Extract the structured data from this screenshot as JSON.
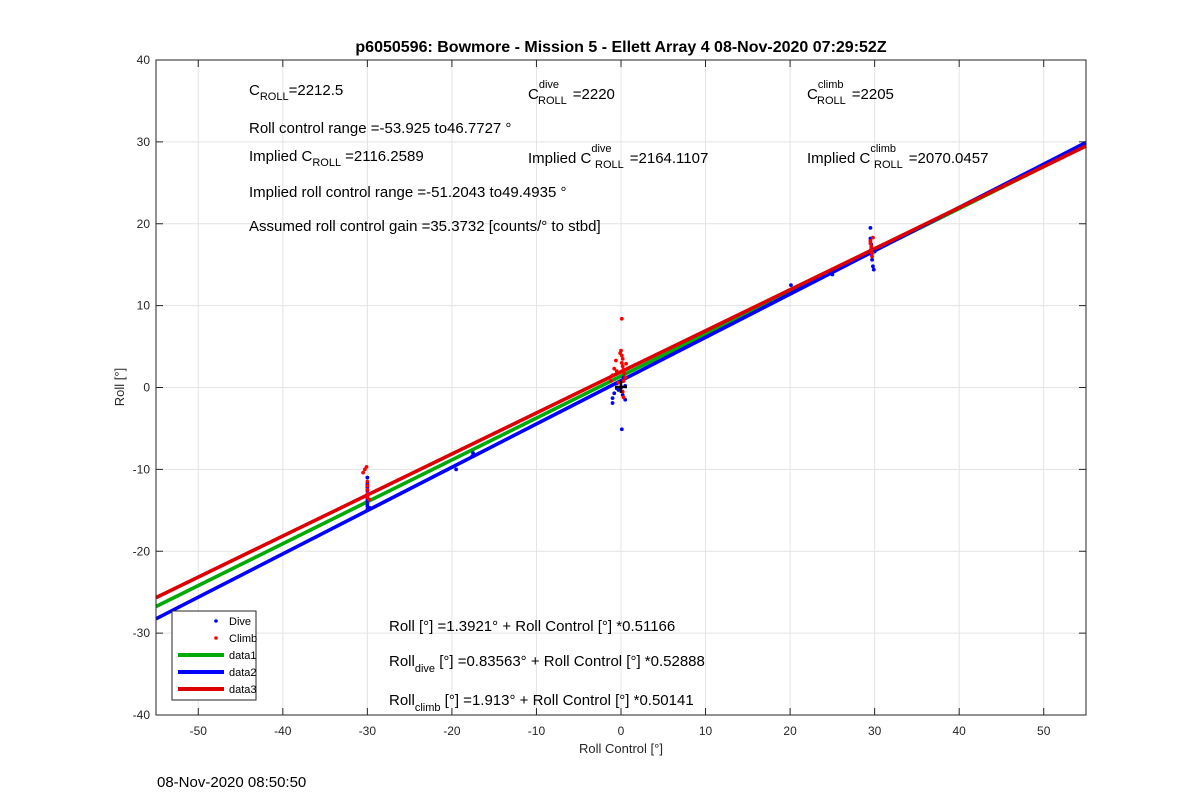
{
  "figure": {
    "timestamp": "08-Nov-2020 08:50:50"
  },
  "chart_data": {
    "type": "scatter",
    "title": "p6050596: Bowmore - Mission 5 - Ellett Array 4 08-Nov-2020 07:29:52Z",
    "xlabel": "Roll Control [°]",
    "ylabel": "Roll [°]",
    "xlim": [
      -55,
      55
    ],
    "ylim": [
      -40,
      40
    ],
    "xticks": [
      -50,
      -40,
      -30,
      -20,
      -10,
      0,
      10,
      20,
      30,
      40,
      50
    ],
    "yticks": [
      -40,
      -30,
      -20,
      -10,
      0,
      10,
      20,
      30,
      40
    ],
    "grid": true,
    "legend_position": "bottom-left",
    "legend": [
      {
        "label": "Dive",
        "kind": "marker",
        "color": "#0000ff"
      },
      {
        "label": "Climb",
        "kind": "marker",
        "color": "#ff0000"
      },
      {
        "label": "data1",
        "kind": "line",
        "color": "#00aa00"
      },
      {
        "label": "data2",
        "kind": "line",
        "color": "#0000ff"
      },
      {
        "label": "data3",
        "kind": "line",
        "color": "#dd0000"
      }
    ],
    "series": [
      {
        "name": "Dive",
        "type": "scatter",
        "color": "#0000ff",
        "points": [
          [
            -30,
            -14.9
          ],
          [
            -30,
            -14.5
          ],
          [
            -30,
            -14.2
          ],
          [
            -30,
            -13.8
          ],
          [
            -30,
            -13.5
          ],
          [
            -30,
            -13.0
          ],
          [
            -30,
            -12.6
          ],
          [
            -30,
            -12.2
          ],
          [
            -30,
            -11.8
          ],
          [
            -30,
            -11.0
          ],
          [
            -29.7,
            -14.7
          ],
          [
            -19.5,
            -10.0
          ],
          [
            -17.6,
            -8.4
          ],
          [
            -17.5,
            -8.0
          ],
          [
            -1,
            -1.9
          ],
          [
            -1,
            -1.3
          ],
          [
            -0.8,
            -0.7
          ],
          [
            -0.5,
            0.5
          ],
          [
            -0.3,
            -0.3
          ],
          [
            0,
            0
          ],
          [
            0.2,
            0.8
          ],
          [
            0.3,
            1.2
          ],
          [
            0.2,
            -0.9
          ],
          [
            0.5,
            -1.5
          ],
          [
            0.1,
            -5.1
          ],
          [
            0.5,
            0.2
          ],
          [
            -0.5,
            -0.1
          ],
          [
            20.1,
            12.5
          ],
          [
            25,
            13.8
          ],
          [
            29.5,
            19.5
          ],
          [
            29.5,
            18.2
          ],
          [
            29.6,
            17.5
          ],
          [
            29.6,
            16.9
          ],
          [
            29.6,
            16.3
          ],
          [
            29.7,
            15.6
          ],
          [
            29.8,
            14.8
          ],
          [
            29.9,
            14.4
          ],
          [
            30,
            16.6
          ]
        ]
      },
      {
        "name": "Climb",
        "type": "scatter",
        "color": "#ff0000",
        "points": [
          [
            -30.5,
            -10.4
          ],
          [
            -30.3,
            -10.0
          ],
          [
            -30.1,
            -9.7
          ],
          [
            -30,
            -11.5
          ],
          [
            -30,
            -12.0
          ],
          [
            -30,
            -12.5
          ],
          [
            -30,
            -13.0
          ],
          [
            -30,
            -13.4
          ],
          [
            -29.8,
            -13.7
          ],
          [
            -1.2,
            0.8
          ],
          [
            -1,
            1.5
          ],
          [
            -0.8,
            2.3
          ],
          [
            -0.6,
            3.3
          ],
          [
            -0.5,
            2.0
          ],
          [
            -0.3,
            0.6
          ],
          [
            -0.1,
            4.2
          ],
          [
            0,
            4.5
          ],
          [
            0.1,
            3.9
          ],
          [
            0.2,
            3.5
          ],
          [
            0.1,
            3.0
          ],
          [
            0.2,
            2.6
          ],
          [
            0.3,
            2.2
          ],
          [
            0.4,
            1.7
          ],
          [
            0.5,
            1.2
          ],
          [
            0.3,
            0.8
          ],
          [
            0.2,
            -0.5
          ],
          [
            0.3,
            -1.2
          ],
          [
            0.1,
            8.4
          ],
          [
            0.6,
            2.9
          ],
          [
            29.5,
            17.9
          ],
          [
            29.5,
            17.6
          ],
          [
            29.6,
            17.2
          ],
          [
            29.6,
            16.8
          ],
          [
            29.7,
            16.4
          ],
          [
            29.7,
            16.0
          ],
          [
            29.8,
            18.3
          ]
        ]
      },
      {
        "name": "data1",
        "type": "line",
        "color": "#00aa00",
        "intercept": 1.3921,
        "slope": 0.51166
      },
      {
        "name": "data2",
        "type": "line",
        "color": "#0000ff",
        "intercept": 0.83563,
        "slope": 0.52888
      },
      {
        "name": "data3",
        "type": "line",
        "color": "#dd0000",
        "intercept": 1.913,
        "slope": 0.50141
      }
    ],
    "annotations": {
      "c_roll": {
        "sym": "C",
        "sub": "ROLL",
        "value": "=2212.5"
      },
      "c_dive": {
        "sym": "C",
        "sup": "dive",
        "sub": "ROLL",
        "value": "=2220"
      },
      "c_climb": {
        "sym": "C",
        "sup": "climb",
        "sub": "ROLL",
        "value": "=2205"
      },
      "range": "Roll control range =-53.925 to46.7727 °",
      "implied_c": {
        "prefix": "Implied C",
        "sub": "ROLL",
        "value": "=2116.2589"
      },
      "implied_dive": {
        "prefix": "Implied C",
        "sup": "dive",
        "sub": "ROLL",
        "value": "=2164.1107"
      },
      "implied_climb": {
        "prefix": "Implied C",
        "sup": "climb",
        "sub": "ROLL",
        "value": "=2070.0457"
      },
      "implied_range": "Implied roll control range =-51.2043 to49.4935 °",
      "gain": "Assumed roll control gain =35.3732 [counts/° to stbd]",
      "fit_all": "Roll [°] =1.3921° + Roll Control [°] *0.51166",
      "fit_dive": {
        "prefix": "Roll",
        "sub": "dive",
        "rest": " [°] =0.83563° + Roll Control [°] *0.52888"
      },
      "fit_climb": {
        "prefix": "Roll",
        "sub": "climb",
        "rest": " [°] =1.913° + Roll Control [°] *0.50141"
      }
    }
  }
}
